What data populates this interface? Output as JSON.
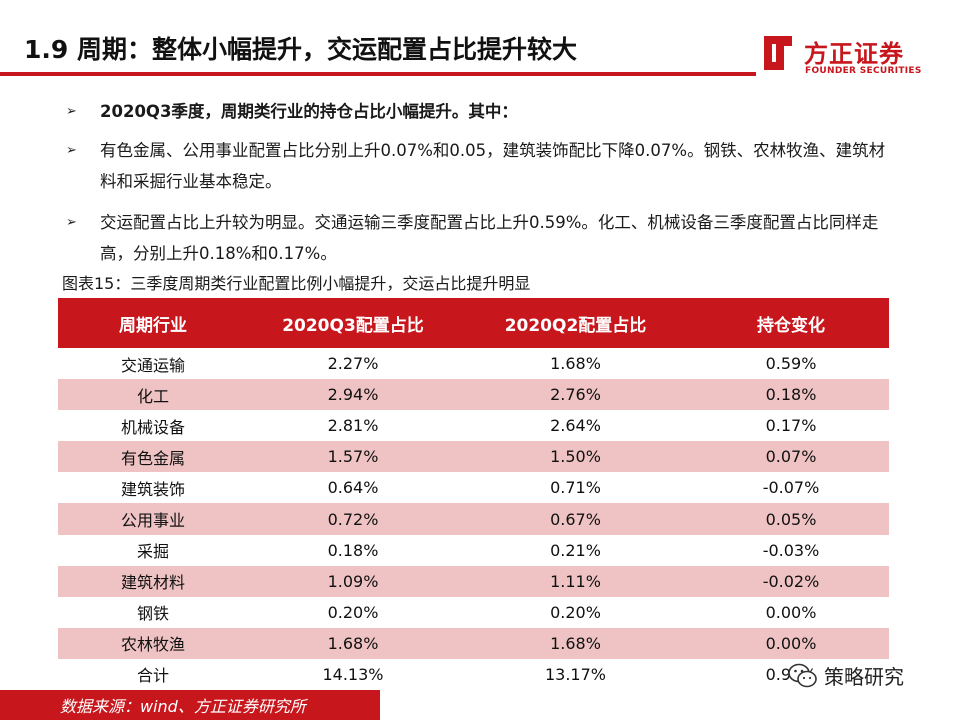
{
  "title": "1.9 周期：整体小幅提升，交运配置占比提升较大",
  "logo": {
    "name_cn": "方正证券",
    "name_en": "FOUNDER SECURITIES"
  },
  "bullets": [
    "2020Q3季度，周期类行业的持仓占比小幅提升。其中：",
    "有色金属、公用事业配置占比分别上升0.07%和0.05，建筑装饰配比下降0.07%。钢铁、农林牧渔、建筑材料和采掘行业基本稳定。",
    "交运配置占比上升较为明显。交通运输三季度配置占比上升0.59%。化工、机械设备三季度配置占比同样走高，分别上升0.18%和0.17%。"
  ],
  "bullet_marker": "➢",
  "caption": "图表15：三季度周期类行业配置比例小幅提升，交运占比提升明显",
  "table": {
    "headers": [
      "周期行业",
      "2020Q3配置占比",
      "2020Q2配置占比",
      "持仓变化"
    ],
    "rows": [
      [
        "交通运输",
        "2.27%",
        "1.68%",
        "0.59%"
      ],
      [
        "化工",
        "2.94%",
        "2.76%",
        "0.18%"
      ],
      [
        "机械设备",
        "2.81%",
        "2.64%",
        "0.17%"
      ],
      [
        "有色金属",
        "1.57%",
        "1.50%",
        "0.07%"
      ],
      [
        "建筑装饰",
        "0.64%",
        "0.71%",
        "-0.07%"
      ],
      [
        "公用事业",
        "0.72%",
        "0.67%",
        "0.05%"
      ],
      [
        "采掘",
        "0.18%",
        "0.21%",
        "-0.03%"
      ],
      [
        "建筑材料",
        "1.09%",
        "1.11%",
        "-0.02%"
      ],
      [
        "钢铁",
        "0.20%",
        "0.20%",
        "0.00%"
      ],
      [
        "农林牧渔",
        "1.68%",
        "1.68%",
        "0.00%"
      ],
      [
        "合计",
        "14.13%",
        "13.17%",
        "0.96%"
      ]
    ]
  },
  "footer": "数据来源：wind、方正证券研究所",
  "watermark": "策略研究",
  "colors": {
    "accent": "#c8161d",
    "row_shade": "#efc3c3"
  }
}
